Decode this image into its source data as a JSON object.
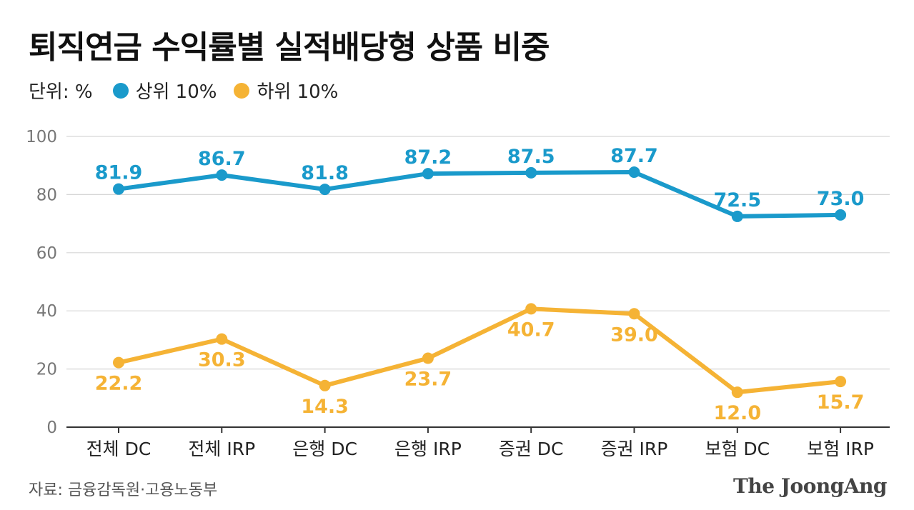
{
  "chart_data": {
    "type": "line",
    "title": "퇴직연금 수익률별 실적배당형 상품 비중",
    "unit_label": "단위: %",
    "categories": [
      "전체 DC",
      "전체 IRP",
      "은행 DC",
      "은행 IRP",
      "증권 DC",
      "증권 IRP",
      "보험 DC",
      "보험 IRP"
    ],
    "series": [
      {
        "name": "상위 10%",
        "color": "#1a9acb",
        "values": [
          81.9,
          86.7,
          81.8,
          87.2,
          87.5,
          87.7,
          72.5,
          73.0
        ],
        "label_position": "above"
      },
      {
        "name": "하위 10%",
        "color": "#f5b335",
        "values": [
          22.2,
          30.3,
          14.3,
          23.7,
          40.7,
          39.0,
          12.0,
          15.7
        ],
        "label_position": "below"
      }
    ],
    "ylim": [
      0,
      100
    ],
    "yticks": [
      0,
      20,
      40,
      60,
      80,
      100
    ],
    "grid": true,
    "legend": "top-left",
    "source": "자료: 금융감독원·고용노동부"
  },
  "brand": "The JoongAng"
}
